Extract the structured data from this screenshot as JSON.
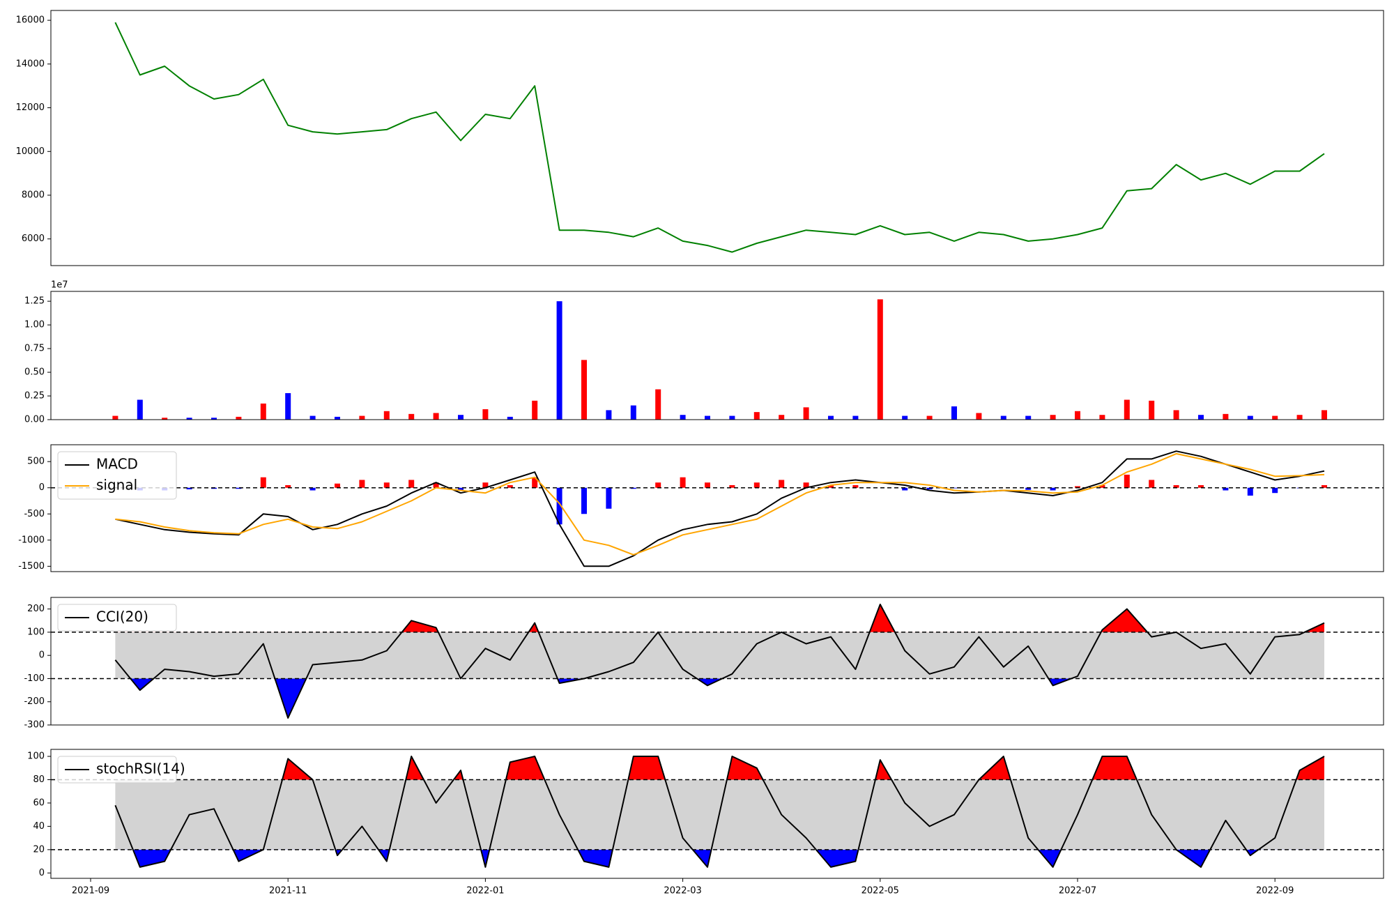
{
  "chart_data": [
    {
      "type": "line",
      "color": "#008000",
      "ylim": [
        4780,
        16450
      ],
      "yticks": [
        6000,
        8000,
        10000,
        12000,
        14000,
        16000
      ],
      "values": [
        null,
        15900,
        13500,
        13900,
        13000,
        12400,
        12600,
        13300,
        11200,
        10900,
        10800,
        10900,
        11000,
        11500,
        11800,
        10500,
        11700,
        11500,
        13000,
        6400,
        6400,
        6300,
        6100,
        6500,
        5900,
        5700,
        5400,
        5800,
        6100,
        6400,
        6300,
        6200,
        6600,
        6200,
        6300,
        5900,
        6300,
        6200,
        5900,
        6000,
        6200,
        6500,
        8200,
        8300,
        9400,
        8700,
        9000,
        8500,
        9100,
        9100,
        9900
      ]
    },
    {
      "type": "bar",
      "offset_label": "1e7",
      "up_color": "#ff0000",
      "down_color": "#0000ff",
      "ylim": [
        0,
        13540000
      ],
      "yticks": [
        {
          "value": 0,
          "label": "0.00"
        },
        {
          "value": 2500000,
          "label": "0.25"
        },
        {
          "value": 5000000,
          "label": "0.50"
        },
        {
          "value": 7500000,
          "label": "0.75"
        },
        {
          "value": 10000000,
          "label": "1.00"
        },
        {
          "value": 12500000,
          "label": "1.25"
        }
      ],
      "values": [
        null,
        400000,
        2100000,
        200000,
        200000,
        200000,
        300000,
        1700000,
        2800000,
        400000,
        300000,
        400000,
        900000,
        600000,
        700000,
        500000,
        1100000,
        300000,
        2000000,
        12500000,
        6300000,
        1000000,
        1500000,
        3200000,
        500000,
        400000,
        400000,
        800000,
        500000,
        1300000,
        400000,
        400000,
        12700000,
        400000,
        400000,
        1400000,
        700000,
        400000,
        400000,
        500000,
        900000,
        500000,
        2100000,
        2000000,
        1000000,
        500000,
        600000,
        400000,
        400000,
        500000,
        1000000
      ]
    },
    {
      "type": "macd",
      "ylim": [
        -1602,
        822
      ],
      "yticks": [
        -1500,
        -1000,
        -500,
        0,
        500
      ],
      "hlines": [
        0
      ],
      "legend": "upper left",
      "series": [
        {
          "name": "MACD",
          "color": "#000000",
          "values": [
            null,
            -600,
            -700,
            -800,
            -850,
            -880,
            -900,
            -500,
            -550,
            -800,
            -700,
            -500,
            -350,
            -100,
            100,
            -100,
            0,
            150,
            300,
            -700,
            -1500,
            -1500,
            -1300,
            -1000,
            -800,
            -700,
            -650,
            -500,
            -200,
            0,
            100,
            150,
            100,
            50,
            -50,
            -100,
            -80,
            -50,
            -100,
            -150,
            -50,
            100,
            550,
            550,
            700,
            600,
            450,
            300,
            150,
            220,
            320
          ]
        },
        {
          "name": "signal",
          "color": "#ffa500",
          "values": [
            null,
            -600,
            -650,
            -750,
            -820,
            -860,
            -880,
            -700,
            -600,
            -750,
            -780,
            -650,
            -450,
            -250,
            0,
            -50,
            -100,
            100,
            200,
            -300,
            -1000,
            -1100,
            -1280,
            -1100,
            -900,
            -800,
            -700,
            -600,
            -350,
            -100,
            50,
            100,
            100,
            100,
            50,
            -50,
            -80,
            -50,
            -60,
            -100,
            -80,
            50,
            300,
            450,
            650,
            550,
            450,
            350,
            220,
            230,
            250
          ]
        }
      ],
      "histogram": {
        "up_color": "#ff0000",
        "down_color": "#0000ff",
        "values": [
          null,
          0,
          -50,
          -50,
          -30,
          -20,
          -20,
          200,
          50,
          -50,
          80,
          150,
          100,
          150,
          100,
          -50,
          100,
          50,
          200,
          -700,
          -500,
          -400,
          -20,
          100,
          200,
          100,
          50,
          100,
          150,
          100,
          50,
          50,
          0,
          -50,
          -30,
          -10,
          0,
          0,
          -40,
          -50,
          30,
          50,
          250,
          150,
          50,
          50,
          -50,
          -150,
          -100,
          -10,
          50
        ]
      }
    },
    {
      "type": "oscillator",
      "ylim": [
        -300,
        250
      ],
      "yticks": [
        -300,
        -200,
        -100,
        0,
        100,
        200
      ],
      "hlines": [
        100,
        -100
      ],
      "legend": "upper left",
      "band_color": "#d3d3d3",
      "above_color": "#ff0000",
      "below_color": "#0000ff",
      "series": [
        {
          "name": "CCI(20)",
          "color": "#000000",
          "values": [
            null,
            -20,
            -150,
            -60,
            -70,
            -90,
            -80,
            50,
            -270,
            -40,
            -30,
            -20,
            20,
            150,
            120,
            -100,
            30,
            -20,
            140,
            -120,
            -100,
            -70,
            -30,
            100,
            -60,
            -130,
            -80,
            50,
            100,
            50,
            80,
            -60,
            220,
            20,
            -80,
            -50,
            80,
            -50,
            40,
            -130,
            -90,
            110,
            200,
            80,
            100,
            30,
            50,
            -80,
            80,
            90,
            140
          ]
        }
      ]
    },
    {
      "type": "oscillator",
      "ylim": [
        -4.6,
        106
      ],
      "yticks": [
        0,
        20,
        40,
        60,
        80,
        100
      ],
      "hlines": [
        80,
        20
      ],
      "legend": "upper left",
      "band_color": "#d3d3d3",
      "above_color": "#ff0000",
      "below_color": "#0000ff",
      "categories": [
        "2021-09",
        null,
        null,
        null,
        null,
        null,
        null,
        null,
        "2021-11",
        null,
        null,
        null,
        null,
        null,
        null,
        null,
        "2022-01",
        null,
        null,
        null,
        null,
        null,
        null,
        null,
        "2022-03",
        null,
        null,
        null,
        null,
        null,
        null,
        null,
        "2022-05",
        null,
        null,
        null,
        null,
        null,
        null,
        null,
        "2022-07",
        null,
        null,
        null,
        null,
        null,
        null,
        null,
        "2022-09",
        null,
        null
      ],
      "series": [
        {
          "name": "stochRSI(14)",
          "color": "#000000",
          "values": [
            null,
            58,
            5,
            10,
            50,
            55,
            10,
            20,
            98,
            80,
            15,
            40,
            10,
            100,
            60,
            88,
            5,
            95,
            100,
            50,
            10,
            5,
            100,
            100,
            30,
            5,
            100,
            90,
            50,
            30,
            5,
            10,
            97,
            60,
            40,
            50,
            80,
            100,
            30,
            5,
            50,
            100,
            100,
            50,
            20,
            5,
            45,
            15,
            30,
            88,
            100
          ]
        }
      ]
    }
  ]
}
